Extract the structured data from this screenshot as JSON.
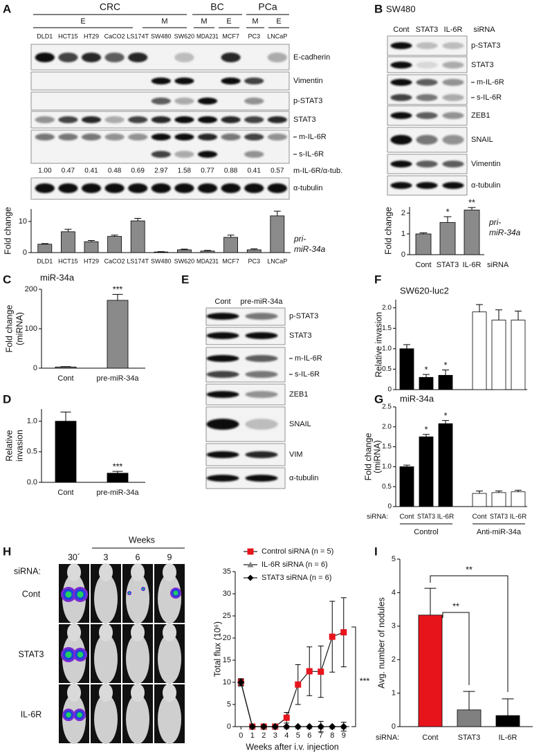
{
  "panel_labels": [
    "A",
    "B",
    "C",
    "D",
    "E",
    "F",
    "G",
    "H",
    "I"
  ],
  "blot_a": {
    "cell_types": [
      "CRC",
      "BC",
      "PCa"
    ],
    "phenotypes": [
      "E",
      "M",
      "M",
      "E",
      "M",
      "E"
    ],
    "lanes": [
      "DLD1",
      "HCT15",
      "HT29",
      "CaCO2",
      "LS174T",
      "SW480",
      "SW620",
      "MDA231",
      "MCF7",
      "PC3",
      "LNCaP"
    ],
    "rows": [
      "E-cadherin",
      "Vimentin",
      "p-STAT3",
      "STAT3",
      "m-IL-6R",
      "s-IL-6R",
      "α-tubulin"
    ],
    "quant_label": "m-IL-6R/α-tub.",
    "quant": [
      "1.00",
      "0.47",
      "0.41",
      "0.48",
      "0.69",
      "2.97",
      "1.58",
      "0.77",
      "0.88",
      "0.41",
      "0.57"
    ]
  },
  "blot_b": {
    "title": "SW480",
    "columns": [
      "Cont",
      "STAT3",
      "IL-6R"
    ],
    "column_header": "siRNA",
    "rows": [
      "p-STAT3",
      "STAT3",
      "m-IL-6R",
      "s-IL-6R",
      "ZEB1",
      "SNAIL",
      "Vimentin",
      "α-tubulin"
    ]
  },
  "blot_e": {
    "columns": [
      "Cont",
      "pre-miR-34a"
    ],
    "rows": [
      "p-STAT3",
      "STAT3",
      "m-IL-6R",
      "s-IL-6R",
      "ZEB1",
      "SNAIL",
      "VIM",
      "α-tubulin"
    ]
  },
  "imaging_h": {
    "time_header": "Weeks",
    "timepoints": [
      "30´",
      "3",
      "6",
      "9"
    ],
    "row_header": "siRNA:",
    "rows": [
      "Cont",
      "STAT3",
      "IL-6R"
    ]
  },
  "chart_data": [
    {
      "type": "bar",
      "ylabel": "Fold change",
      "series_label": [
        "pri-",
        "miR-34a"
      ],
      "categories": [
        "DLD1",
        "HCT15",
        "HT29",
        "CaCO2",
        "LS174T",
        "SW480",
        "SW620",
        "MDA231",
        "MCF7",
        "PC3",
        "LNCaP"
      ],
      "values": [
        2.7,
        6.7,
        3.5,
        5.2,
        10.2,
        0.2,
        0.9,
        0.5,
        4.9,
        0.9,
        11.8
      ],
      "errors": [
        0.2,
        0.8,
        0.4,
        0.4,
        0.8,
        0.1,
        0.2,
        0.2,
        0.7,
        0.3,
        1.5
      ],
      "color": "#8a8a8a",
      "ylim": [
        0,
        14
      ],
      "yticks": [
        0,
        10
      ]
    },
    {
      "type": "bar",
      "ylabel": "Fold change",
      "series_label": [
        "pri-",
        "miR-34a"
      ],
      "xlabel": "siRNA",
      "categories": [
        "Cont",
        "STAT3",
        "IL-6R"
      ],
      "values": [
        1.0,
        1.55,
        2.15
      ],
      "errors": [
        0.05,
        0.28,
        0.12
      ],
      "stars": [
        null,
        "*",
        "**"
      ],
      "color": "#8a8a8a",
      "ylim": [
        0,
        2.3
      ],
      "yticks": [
        0,
        1,
        2
      ]
    },
    {
      "type": "bar",
      "title": "miR-34a",
      "ylabel": [
        "Fold change",
        "(miRNA)"
      ],
      "categories": [
        "Cont",
        "pre-miR-34a"
      ],
      "values": [
        3,
        172
      ],
      "errors": [
        1,
        15
      ],
      "stars": [
        null,
        "***"
      ],
      "color": "#8a8a8a",
      "ylim": [
        0,
        200
      ],
      "yticks": [
        0,
        100,
        200
      ]
    },
    {
      "type": "bar",
      "ylabel": [
        "Relative",
        "invasion"
      ],
      "categories": [
        "Cont",
        "pre-miR-34a"
      ],
      "values": [
        1.0,
        0.15
      ],
      "errors": [
        0.15,
        0.03
      ],
      "stars": [
        null,
        "***"
      ],
      "color": "#000000",
      "ylim": [
        0,
        1.2
      ],
      "yticks": [
        {
          "value": 0,
          "label": "0.0"
        },
        {
          "value": 0.5,
          "label": "0.5"
        },
        {
          "value": 1,
          "label": "1.0"
        }
      ]
    },
    {
      "type": "bar",
      "title": "SW620-luc2",
      "ylabel": "Relative invasion",
      "categories": [
        null,
        null,
        null,
        null,
        null,
        null
      ],
      "values": [
        1.0,
        0.3,
        0.35,
        1.9,
        1.7,
        1.7
      ],
      "errors": [
        0.1,
        0.07,
        0.13,
        0.18,
        0.25,
        0.22
      ],
      "stars": [
        null,
        "*",
        "*",
        null,
        null,
        null
      ],
      "colors": [
        "#000000",
        "#000000",
        "#000000",
        "#ffffff",
        "#ffffff",
        "#ffffff"
      ],
      "ylim": [
        0,
        2.2
      ],
      "yticks": [
        0,
        {
          "value": 0.5,
          "label": "0.5"
        },
        {
          "value": 1,
          "label": "1.0"
        },
        {
          "value": 1.5,
          "label": "1.5"
        },
        {
          "value": 2,
          "label": "2.0"
        }
      ]
    },
    {
      "type": "bar",
      "title": "miR-34a",
      "ylabel": [
        "Fold change",
        "(miRNA)"
      ],
      "xlabel": "siRNA:",
      "categories": [
        "Cont",
        "STAT3",
        "IL-6R",
        "Cont",
        "STAT3",
        "IL-6R"
      ],
      "groups": [
        "Control",
        "Anti-miR-34a"
      ],
      "values": [
        1.0,
        1.75,
        2.08,
        0.33,
        0.35,
        0.37
      ],
      "errors": [
        0.04,
        0.06,
        0.08,
        0.06,
        0.04,
        0.04
      ],
      "stars": [
        null,
        "*",
        "*",
        null,
        null,
        null
      ],
      "colors": [
        "#000000",
        "#000000",
        "#000000",
        "#ffffff",
        "#ffffff",
        "#ffffff"
      ],
      "ylim": [
        0,
        2.5
      ],
      "yticks": [
        0,
        {
          "value": 0.5,
          "label": "0.5"
        },
        {
          "value": 1,
          "label": "1.0"
        },
        {
          "value": 1.5,
          "label": "1.5"
        },
        {
          "value": 2,
          "label": "2.0"
        },
        {
          "value": 2.5,
          "label": "2.5"
        }
      ]
    },
    {
      "type": "line",
      "ylabel": "Total flux (10⁶)",
      "xlabel": "Weeks after i.v. injection",
      "x": [
        0,
        1,
        2,
        3,
        4,
        5,
        6,
        7,
        8,
        9
      ],
      "xlim": [
        -0.5,
        9.5
      ],
      "xticks": [
        0,
        1,
        2,
        3,
        4,
        5,
        6,
        7,
        8,
        9
      ],
      "ylim": [
        0,
        35
      ],
      "yticks": [
        0,
        5,
        10,
        15,
        20,
        25,
        30,
        35
      ],
      "series": [
        {
          "name": "Control siRNA (n = 5)",
          "color": "#e8141c",
          "marker": "square",
          "values": [
            10,
            0,
            0,
            0,
            2,
            9.5,
            12.5,
            12.4,
            20.3,
            21.3
          ],
          "errors": [
            0.8,
            0,
            0,
            0,
            1.2,
            4.5,
            5.5,
            5.8,
            8,
            7.8
          ]
        },
        {
          "name": "IL-6R siRNA (n = 6)",
          "color": "#808080",
          "marker": "triangle",
          "values": [
            10,
            0,
            0,
            0,
            0,
            0,
            0,
            0,
            0,
            0
          ],
          "errors": [
            0.8,
            0,
            0,
            0,
            0,
            0,
            0,
            1.2,
            0,
            0
          ]
        },
        {
          "name": "STAT3 siRNA (n = 6)",
          "color": "#000000",
          "marker": "diamond",
          "values": [
            10,
            0,
            0,
            0,
            0,
            0,
            0,
            0,
            0,
            0
          ],
          "errors": [
            0.8,
            0,
            0,
            0,
            0,
            0,
            0,
            0,
            0,
            1
          ]
        }
      ],
      "annotations": [
        "***"
      ]
    },
    {
      "type": "bar",
      "ylabel": "Avg. number of nodules",
      "xlabel": "siRNA:",
      "categories": [
        "Cont",
        "STAT3",
        "IL-6R"
      ],
      "values": [
        3.33,
        0.5,
        0.33
      ],
      "errors": [
        0.8,
        0.55,
        0.5
      ],
      "colors": [
        "#e8141c",
        "#808080",
        "#000000"
      ],
      "ylim": [
        0,
        5
      ],
      "yticks": [
        0,
        1,
        2,
        3,
        4,
        5
      ],
      "annotations": [
        "**",
        "**"
      ]
    }
  ]
}
